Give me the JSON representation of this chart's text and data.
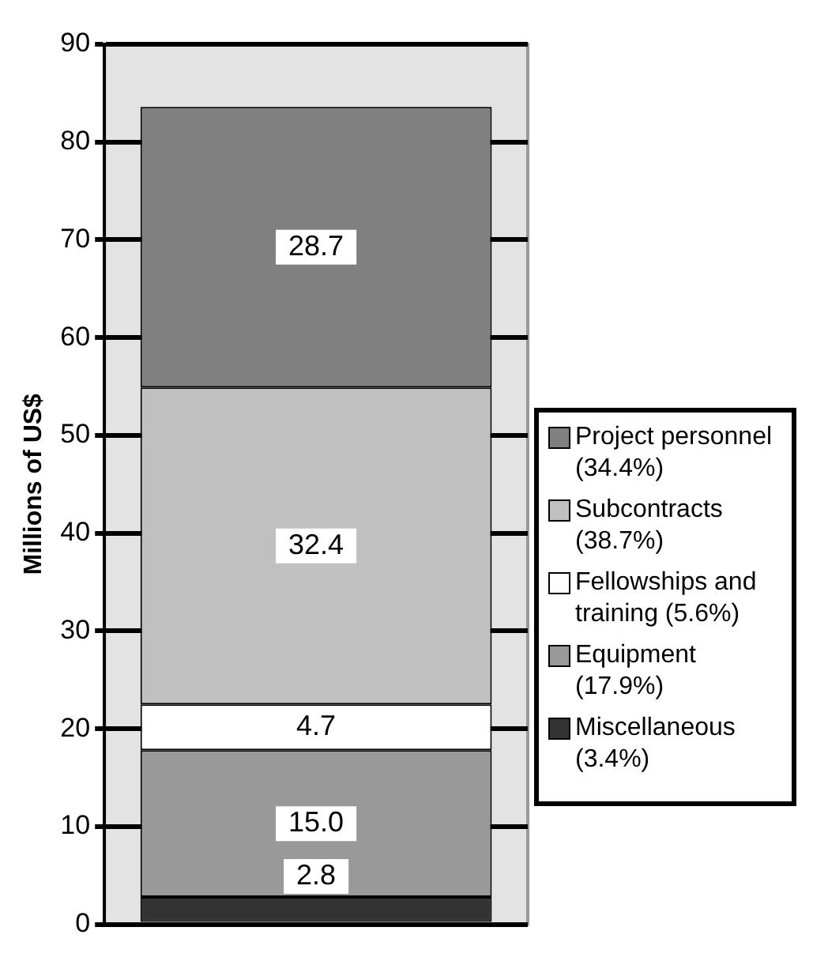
{
  "chart_data": {
    "type": "bar",
    "ylabel": "Millions of US$",
    "categories": [
      null
    ],
    "stacked": true,
    "grid": "y",
    "legend": "right",
    "tick_labels": "y",
    "ylim": [
      0,
      90
    ],
    "yticks": [
      0,
      10,
      20,
      30,
      40,
      50,
      60,
      70,
      80,
      90
    ],
    "series": [
      {
        "name": "Miscellaneous (3.4%)",
        "color": "#333333",
        "values": [
          2.8
        ],
        "value_labels": [
          "2.8"
        ]
      },
      {
        "name": "Equipment (17.9%)",
        "color": "#999999",
        "values": [
          15.0
        ],
        "value_labels": [
          "15.0"
        ]
      },
      {
        "name": "Fellowships and training (5.6%)",
        "color": "#ffffff",
        "values": [
          4.7
        ],
        "value_labels": [
          "4.7"
        ]
      },
      {
        "name": "Subcontracts (38.7%)",
        "color": "#c0c0c0",
        "values": [
          32.4
        ],
        "value_labels": [
          "32.4"
        ]
      },
      {
        "name": "Project personnel (34.4%)",
        "color": "#808080",
        "values": [
          28.7
        ],
        "value_labels": [
          "28.7"
        ]
      }
    ]
  }
}
